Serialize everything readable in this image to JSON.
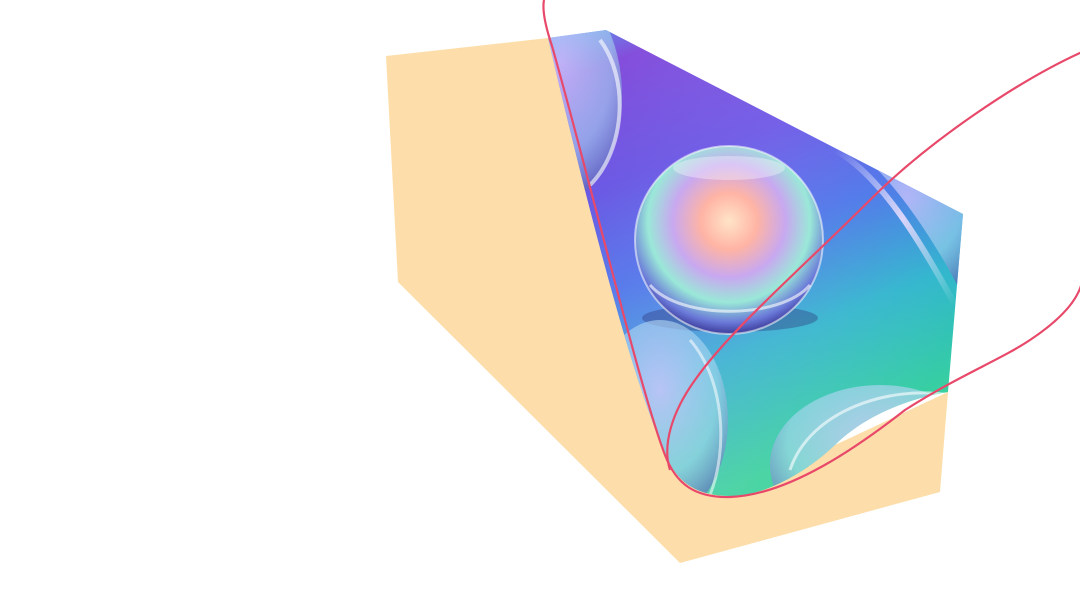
{
  "scene": {
    "background_color": "#ffffff",
    "prism_color": "#fddeaa",
    "outline_color": "#e8496a",
    "holographic_colors": [
      "#3a8fe6",
      "#6a3fd8",
      "#4a5be0",
      "#2fb8c8",
      "#3ad0a0",
      "#7a4ad0"
    ],
    "droplet_highlight_colors": [
      "#ffb0a0",
      "#ffe0c0",
      "#a0f0e0",
      "#d0b0ff"
    ]
  }
}
